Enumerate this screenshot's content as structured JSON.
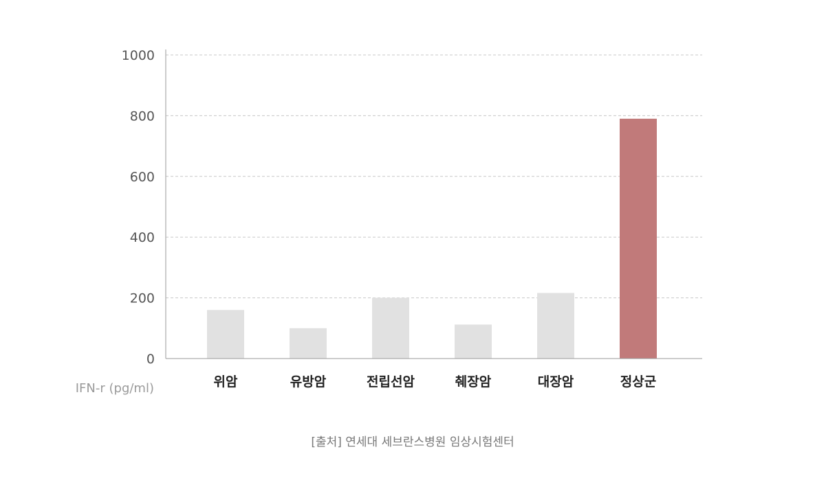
{
  "chart_data": {
    "type": "bar",
    "categories": [
      "위암",
      "유방암",
      "전립선암",
      "췌장암",
      "대장암",
      "정상군"
    ],
    "values": [
      160,
      100,
      200,
      112,
      216,
      790
    ],
    "ylim": [
      0,
      1000
    ],
    "yticks": [
      0,
      200,
      400,
      600,
      800,
      1000
    ],
    "ylabel": "IFN-r (pg/ml)",
    "grid": true,
    "colors": {
      "default": "#e1e1e1",
      "highlight": "#c17a7a",
      "gridline": "#c8c8c8",
      "axis": "#9a9a9a"
    },
    "highlight_index": 5
  },
  "source": "[출처] 연세대 세브란스병원 임상시험센터"
}
